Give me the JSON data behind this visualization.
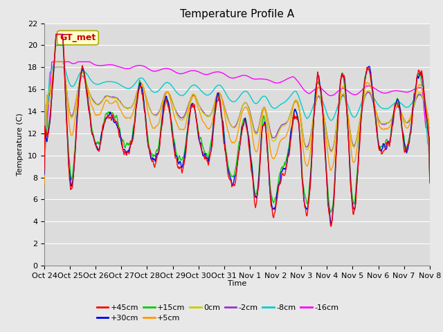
{
  "title": "Temperature Profile A",
  "xlabel": "Time",
  "ylabel": "Temperature (C)",
  "ylim": [
    0,
    22
  ],
  "yticks": [
    0,
    2,
    4,
    6,
    8,
    10,
    12,
    14,
    16,
    18,
    20,
    22
  ],
  "xtick_labels": [
    "Oct 24",
    "Oct 25",
    "Oct 26",
    "Oct 27",
    "Oct 28",
    "Oct 29",
    "Oct 30",
    "Oct 31",
    "Nov 1",
    "Nov 2",
    "Nov 3",
    "Nov 4",
    "Nov 5",
    "Nov 6",
    "Nov 7",
    "Nov 8"
  ],
  "annotation_text": "GT_met",
  "annotation_color": "#cc0000",
  "annotation_bg": "#ffffcc",
  "annotation_border": "#aaaa00",
  "series_colors": {
    "+45cm": "#ff0000",
    "+30cm": "#0000ee",
    "+15cm": "#00cc00",
    "+5cm": "#ff9900",
    "0cm": "#cccc00",
    "-2cm": "#9933cc",
    "-8cm": "#00cccc",
    "-16cm": "#ff00ff"
  },
  "series_lw": 1.0,
  "plot_bg_color": "#dcdcdc",
  "fig_bg_color": "#e8e8e8",
  "grid_color": "#ffffff",
  "title_fontsize": 11,
  "label_fontsize": 8,
  "tick_fontsize": 8
}
